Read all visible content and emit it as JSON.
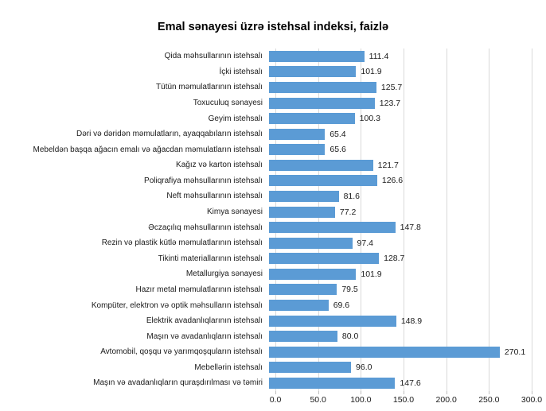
{
  "title": "Emal sənayesi üzrə istehsal indeksi, faizlə",
  "chart_data": {
    "type": "bar",
    "orientation": "horizontal",
    "title": "Emal sənayesi üzrə istehsal indeksi, faizlə",
    "categories": [
      "Qida məhsullarının istehsalı",
      "İçki istehsalı",
      "Tütün məmulatlarının istehsalı",
      "Toxuculuq sənayesi",
      "Geyim istehsalı",
      "Dəri və dəridən məmulatların, ayaqqabıların istehsalı",
      "Mebeldən başqa ağacın emalı və ağacdan məmulatların istehsalı",
      "Kağız və karton istehsalı",
      "Poliqrafiya məhsullarının istehsalı",
      "Neft məhsullarının istehsalı",
      "Kimya sənayesi",
      "Əczaçılıq məhsullarının istehsalı",
      "Rezin və plastik kütlə məmulatlarının istehsalı",
      "Tikinti materiallarının istehsalı",
      "Metallurgiya sənayesi",
      "Hazır metal məmulatlarının istehsalı",
      "Kompüter, elektron və optik məhsulların istehsalı",
      "Elektrik avadanlıqlarının istehsalı",
      "Maşın və avadanlıqların istehsalı",
      "Avtomobil, qoşqu və yarımqoşquların istehsalı",
      "Mebellərin istehsalı",
      "Maşın və avadanlıqların quraşdırılması və təmiri"
    ],
    "values": [
      111.4,
      101.9,
      125.7,
      123.7,
      100.3,
      65.4,
      65.6,
      121.7,
      126.6,
      81.6,
      77.2,
      147.8,
      97.4,
      128.7,
      101.9,
      79.5,
      69.6,
      148.9,
      80.0,
      270.1,
      96.0,
      147.6
    ],
    "value_labels": [
      "111.4",
      "101.9",
      "125.7",
      "123.7",
      "100.3",
      "65.4",
      "65.6",
      "121.7",
      "126.6",
      "81.6",
      "77.2",
      "147.8",
      "97.4",
      "128.7",
      "101.9",
      "79.5",
      "69.6",
      "148.9",
      "80.0",
      "270.1",
      "96.0",
      "147.6"
    ],
    "xlabel": "",
    "ylabel": "",
    "xlim": [
      0,
      300
    ],
    "x_tick_step": 50,
    "x_ticks": [
      "0.0",
      "50.0",
      "100.0",
      "150.0",
      "200.0",
      "250.0",
      "300.0"
    ],
    "grid": "vertical",
    "legend": "none",
    "bar_color": "#5B9BD5",
    "gridline_color": "#D9D9D9",
    "axis_line_color": "#D9D9D9",
    "text_color": "#1a1a1a"
  }
}
